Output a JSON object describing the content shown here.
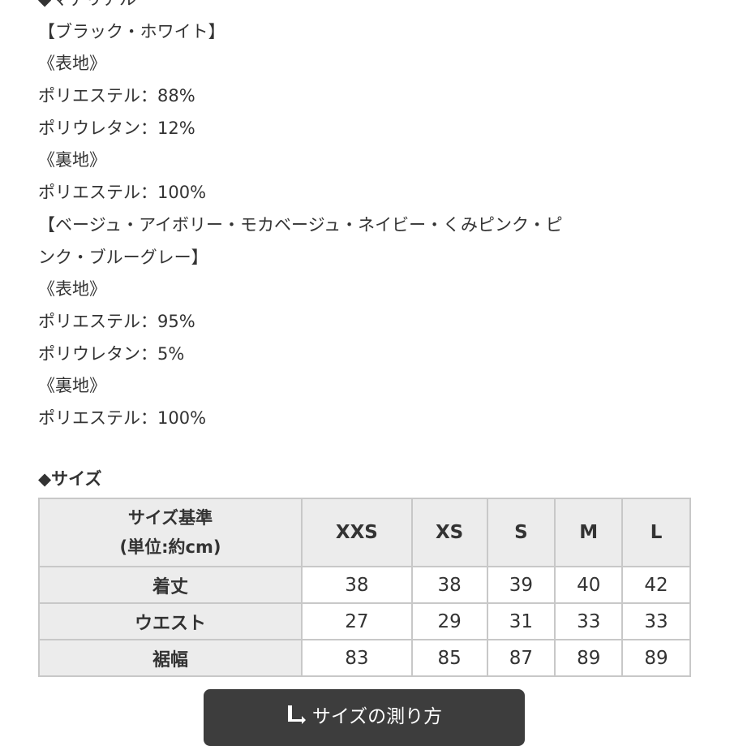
{
  "material": {
    "lines": [
      "◆マテリアル",
      "【ブラック・ホワイト】",
      "《表地》",
      "ポリエステル：88%",
      "ポリウレタン：12%",
      "《裏地》",
      "ポリエステル：100%",
      "【ベージュ・アイボリー・モカベージュ・ネイビー・くみピンク・ピ",
      "ンク・ブルーグレー】",
      "《表地》",
      "ポリエステル：95%",
      "ポリウレタン：5%",
      "《裏地》",
      "ポリエステル：100%"
    ]
  },
  "size": {
    "heading": "◆サイズ",
    "header_line1": "サイズ基準",
    "header_line2": "(単位:約cm)",
    "columns": [
      "XXS",
      "XS",
      "S",
      "M",
      "L"
    ],
    "rows": [
      {
        "label": "着丈",
        "values": [
          "38",
          "38",
          "39",
          "40",
          "42"
        ]
      },
      {
        "label": "ウエスト",
        "values": [
          "27",
          "29",
          "31",
          "33",
          "33"
        ]
      },
      {
        "label": "裾幅",
        "values": [
          "83",
          "85",
          "87",
          "89",
          "89"
        ]
      }
    ]
  },
  "button": {
    "label": "サイズの測り方",
    "icon": "ruler-icon"
  }
}
